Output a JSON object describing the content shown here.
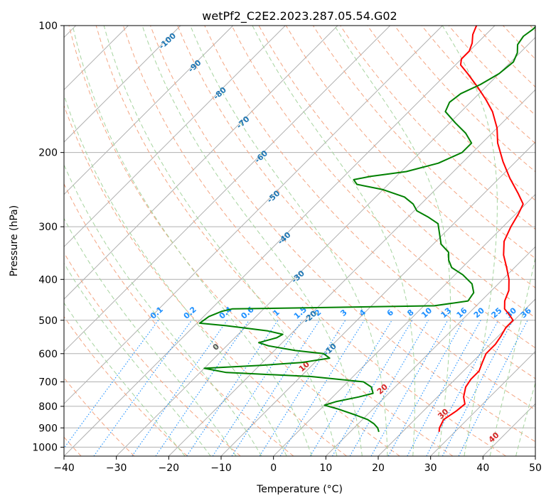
{
  "chart_data": {
    "type": "line",
    "chart_subtype": "skew-t log-p diagram",
    "title": "wetPf2_C2E2.2023.287.05.54.G02",
    "xlabel": "Temperature (°C)",
    "ylabel": "Pressure (hPa)",
    "xlim": [
      -40,
      50
    ],
    "ylim": [
      1050,
      100
    ],
    "y_scale": "log",
    "x_ticks": [
      -40,
      -30,
      -20,
      -10,
      0,
      10,
      20,
      30,
      40,
      50
    ],
    "y_ticks": [
      100,
      200,
      300,
      400,
      500,
      600,
      700,
      800,
      900,
      1000
    ],
    "grid": true,
    "series": [
      {
        "role": "temperature",
        "color": "#ff0000",
        "points": [
          {
            "p": 920,
            "t": 27.0
          },
          {
            "p": 900,
            "t": 26.3
          },
          {
            "p": 860,
            "t": 25.5
          },
          {
            "p": 820,
            "t": 26.3
          },
          {
            "p": 790,
            "t": 26.6
          },
          {
            "p": 760,
            "t": 25.0
          },
          {
            "p": 720,
            "t": 23.5
          },
          {
            "p": 690,
            "t": 23.0
          },
          {
            "p": 660,
            "t": 23.0
          },
          {
            "p": 630,
            "t": 22.0
          },
          {
            "p": 600,
            "t": 21.0
          },
          {
            "p": 570,
            "t": 21.0
          },
          {
            "p": 545,
            "t": 20.5
          },
          {
            "p": 520,
            "t": 19.8
          },
          {
            "p": 500,
            "t": 19.8
          },
          {
            "p": 485,
            "t": 18.0
          },
          {
            "p": 470,
            "t": 16.0
          },
          {
            "p": 450,
            "t": 14.5
          },
          {
            "p": 425,
            "t": 13.3
          },
          {
            "p": 400,
            "t": 11.2
          },
          {
            "p": 375,
            "t": 8.5
          },
          {
            "p": 350,
            "t": 5.5
          },
          {
            "p": 325,
            "t": 3.0
          },
          {
            "p": 300,
            "t": 1.5
          },
          {
            "p": 280,
            "t": 0.5
          },
          {
            "p": 265,
            "t": -0.5
          },
          {
            "p": 250,
            "t": -3.5
          },
          {
            "p": 230,
            "t": -8.0
          },
          {
            "p": 210,
            "t": -12.5
          },
          {
            "p": 190,
            "t": -17.0
          },
          {
            "p": 175,
            "t": -20.0
          },
          {
            "p": 160,
            "t": -24.0
          },
          {
            "p": 150,
            "t": -27.5
          },
          {
            "p": 140,
            "t": -31.5
          },
          {
            "p": 130,
            "t": -36.0
          },
          {
            "p": 124,
            "t": -39.0
          },
          {
            "p": 120,
            "t": -40.0
          },
          {
            "p": 115,
            "t": -40.0
          },
          {
            "p": 110,
            "t": -41.0
          },
          {
            "p": 105,
            "t": -42.5
          },
          {
            "p": 100,
            "t": -43.5
          }
        ]
      },
      {
        "role": "dewpoint",
        "color": "#008000",
        "points": [
          {
            "p": 920,
            "t": 15.5
          },
          {
            "p": 900,
            "t": 14.5
          },
          {
            "p": 880,
            "t": 13.0
          },
          {
            "p": 860,
            "t": 11.0
          },
          {
            "p": 840,
            "t": 8.0
          },
          {
            "p": 810,
            "t": 3.0
          },
          {
            "p": 795,
            "t": 0.0
          },
          {
            "p": 780,
            "t": 1.5
          },
          {
            "p": 760,
            "t": 5.0
          },
          {
            "p": 745,
            "t": 7.0
          },
          {
            "p": 720,
            "t": 5.5
          },
          {
            "p": 700,
            "t": 3.0
          },
          {
            "p": 680,
            "t": -8.0
          },
          {
            "p": 665,
            "t": -25.0
          },
          {
            "p": 650,
            "t": -30.0
          },
          {
            "p": 640,
            "t": -20.0
          },
          {
            "p": 630,
            "t": -12.5
          },
          {
            "p": 615,
            "t": -8.0
          },
          {
            "p": 600,
            "t": -10.0
          },
          {
            "p": 590,
            "t": -16.0
          },
          {
            "p": 575,
            "t": -22.0
          },
          {
            "p": 565,
            "t": -24.5
          },
          {
            "p": 550,
            "t": -22.0
          },
          {
            "p": 540,
            "t": -21.5
          },
          {
            "p": 530,
            "t": -25.0
          },
          {
            "p": 515,
            "t": -34.0
          },
          {
            "p": 508,
            "t": -39.5
          },
          {
            "p": 490,
            "t": -39.0
          },
          {
            "p": 476,
            "t": -37.5
          },
          {
            "p": 470,
            "t": -36.0
          },
          {
            "p": 467,
            "t": -22.0
          },
          {
            "p": 462,
            "t": 2.0
          },
          {
            "p": 450,
            "t": 7.5
          },
          {
            "p": 430,
            "t": 7.0
          },
          {
            "p": 410,
            "t": 5.0
          },
          {
            "p": 390,
            "t": 1.5
          },
          {
            "p": 375,
            "t": -2.0
          },
          {
            "p": 360,
            "t": -4.0
          },
          {
            "p": 345,
            "t": -5.5
          },
          {
            "p": 330,
            "t": -8.5
          },
          {
            "p": 310,
            "t": -11.0
          },
          {
            "p": 295,
            "t": -13.0
          },
          {
            "p": 285,
            "t": -16.0
          },
          {
            "p": 275,
            "t": -19.5
          },
          {
            "p": 265,
            "t": -21.5
          },
          {
            "p": 255,
            "t": -24.5
          },
          {
            "p": 245,
            "t": -30.0
          },
          {
            "p": 238,
            "t": -36.0
          },
          {
            "p": 232,
            "t": -37.5
          },
          {
            "p": 228,
            "t": -35.0
          },
          {
            "p": 222,
            "t": -29.0
          },
          {
            "p": 212,
            "t": -24.5
          },
          {
            "p": 200,
            "t": -22.0
          },
          {
            "p": 190,
            "t": -22.0
          },
          {
            "p": 180,
            "t": -25.0
          },
          {
            "p": 170,
            "t": -29.0
          },
          {
            "p": 160,
            "t": -33.0
          },
          {
            "p": 152,
            "t": -34.0
          },
          {
            "p": 145,
            "t": -33.5
          },
          {
            "p": 138,
            "t": -31.5
          },
          {
            "p": 130,
            "t": -30.0
          },
          {
            "p": 122,
            "t": -29.5
          },
          {
            "p": 116,
            "t": -30.5
          },
          {
            "p": 111,
            "t": -32.0
          },
          {
            "p": 106,
            "t": -32.5
          },
          {
            "p": 102,
            "t": -32.0
          },
          {
            "p": 100,
            "t": -32.0
          }
        ]
      }
    ],
    "mixing_ratio_labels": [
      "0.1",
      "0.2",
      "0.4",
      "0.6",
      "1",
      "1.5",
      "2",
      "3",
      "4",
      "6",
      "8",
      "10",
      "13",
      "16",
      "20",
      "25",
      "30",
      "36"
    ],
    "dry_adiabat_labels": [
      "-100",
      "-90",
      "-80",
      "-70",
      "-60",
      "-50",
      "-40",
      "-30",
      "-20",
      "-10"
    ],
    "moist_adiabat_labels": [
      "0",
      "10",
      "20",
      "30",
      "40"
    ],
    "colors": {
      "isotherm": "#b0b0b0",
      "isobar": "#b0b0b0",
      "dry_adiabat": "#f4a582",
      "moist_adiabat": "#a6d49f",
      "mixing_ratio": "#1e90ff",
      "dry_label": "#1f77b4",
      "moist_label": "#d62728",
      "zero_label": "#555555"
    }
  }
}
